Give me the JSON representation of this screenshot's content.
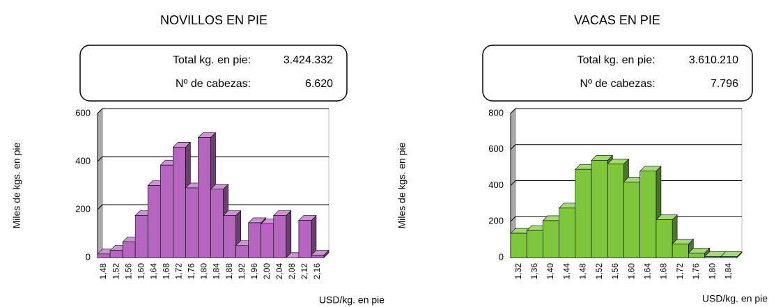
{
  "chart_data": [
    {
      "type": "bar3d",
      "title": "NOVILLOS EN PIE",
      "info": [
        {
          "label": "Total kg. en pie:",
          "value": "3.424.332"
        },
        {
          "label": "Nº de cabezas:",
          "value": "6.620"
        }
      ],
      "y_label": "Miles de kgs. en pie",
      "x_label": "USD/kg. en pie",
      "categories": [
        "1,48",
        "1,52",
        "1,56",
        "1,60",
        "1,64",
        "1,68",
        "1,72",
        "1,76",
        "1,80",
        "1,84",
        "1,88",
        "1,92",
        "1,96",
        "2,00",
        "2,04",
        "2,08",
        "2,12",
        "2,16"
      ],
      "values": [
        15,
        30,
        65,
        175,
        300,
        385,
        460,
        290,
        500,
        285,
        175,
        50,
        145,
        140,
        175,
        0,
        155,
        10
      ],
      "color": "#b565c0",
      "ylim": [
        0,
        600
      ],
      "yticks": [
        0,
        200,
        400,
        600
      ],
      "grid": true
    },
    {
      "type": "bar3d",
      "title": "VACAS EN PIE",
      "info": [
        {
          "label": "Total kg. en pie:",
          "value": "3.610.210"
        },
        {
          "label": "Nº de cabezas:",
          "value": "7.796"
        }
      ],
      "y_label": "Miles de kgs. en pie",
      "x_label": "USD/kg. en pie",
      "categories": [
        "1,32",
        "1,36",
        "1,40",
        "1,44",
        "1,48",
        "1,52",
        "1,56",
        "1,60",
        "1,64",
        "1,68",
        "1,72",
        "1,76",
        "1,80",
        "1,84"
      ],
      "values": [
        135,
        150,
        205,
        275,
        490,
        540,
        520,
        420,
        480,
        210,
        75,
        25,
        5,
        5
      ],
      "color": "#7ec73c",
      "ylim": [
        0,
        800
      ],
      "yticks": [
        0,
        200,
        400,
        600,
        800
      ],
      "grid": true
    }
  ]
}
